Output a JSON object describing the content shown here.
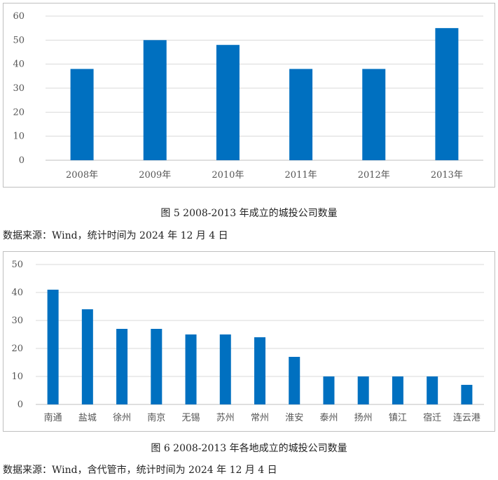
{
  "charts": {
    "chart_data": [
      {
        "type": "bar",
        "title": "",
        "categories": [
          "2008年",
          "2009年",
          "2010年",
          "2011年",
          "2012年",
          "2013年"
        ],
        "values": [
          38,
          50,
          48,
          38,
          38,
          55
        ],
        "ylim": [
          0,
          60
        ],
        "yticks": [
          0,
          10,
          20,
          30,
          40,
          50,
          60
        ],
        "grid": true,
        "bar_color": "#0070C0",
        "xlabel": "",
        "ylabel": ""
      },
      {
        "type": "bar",
        "title": "",
        "categories": [
          "南通",
          "盐城",
          "徐州",
          "南京",
          "无锡",
          "苏州",
          "常州",
          "淮安",
          "泰州",
          "扬州",
          "镇江",
          "宿迁",
          "连云港"
        ],
        "values": [
          41,
          34,
          27,
          27,
          25,
          25,
          24,
          17,
          10,
          10,
          10,
          10,
          7
        ],
        "ylim": [
          0,
          50
        ],
        "yticks": [
          0,
          10,
          20,
          30,
          40,
          50
        ],
        "grid": true,
        "bar_color": "#0070C0",
        "xlabel": "",
        "ylabel": ""
      }
    ]
  },
  "captions": {
    "fig5": "图 5 2008-2013 年成立的城投公司数量",
    "fig6": "图 6 2008-2013 年各地成立的城投公司数量"
  },
  "sources": {
    "fig5": "数据来源：Wind，统计时间为 2024 年 12 月 4 日",
    "fig6": "数据来源：Wind，含代管市，统计时间为 2024 年 12 月 4 日"
  }
}
